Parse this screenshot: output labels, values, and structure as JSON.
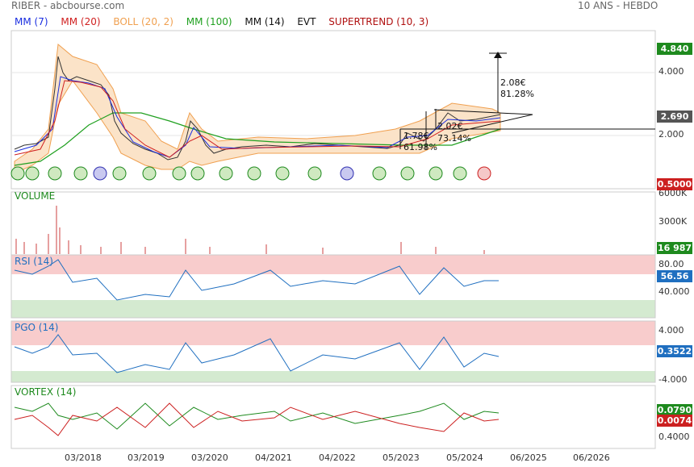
{
  "header": {
    "title": "RIBER - abcbourse.com",
    "period": "10 ANS - HEBDO"
  },
  "legend": [
    {
      "label": "MM (7)",
      "color": "#1a2ee0"
    },
    {
      "label": "MM (20)",
      "color": "#d02020"
    },
    {
      "label": "BOLL (20, 2)",
      "color": "#f0a050"
    },
    {
      "label": "MM (100)",
      "color": "#20a020"
    },
    {
      "label": "MM (14)",
      "color": "#111111"
    },
    {
      "label": "EVT",
      "color": "#111111"
    },
    {
      "label": "SUPERTREND (10, 3)",
      "color": "#b01010"
    }
  ],
  "panels": {
    "price": {
      "y_ticks": [
        "4.000",
        "2.000"
      ],
      "badges": [
        {
          "text": "4.840",
          "color": "#1e8a1e"
        },
        {
          "text": "2.690",
          "color": "#555555"
        },
        {
          "text": "0.5000",
          "color": "#cc2020"
        }
      ],
      "annotations": [
        {
          "text": "2.08€"
        },
        {
          "text": "81.28%"
        },
        {
          "text": "1.78€"
        },
        {
          "text": "61.98%"
        },
        {
          "text": "2.02€"
        },
        {
          "text": "73.14%"
        }
      ]
    },
    "volume": {
      "title": "VOLUME",
      "y_ticks": [
        "6000K",
        "3000K"
      ],
      "badge": {
        "text": "16 987",
        "color": "#1e8a1e"
      }
    },
    "rsi": {
      "title": "RSI (14)",
      "y_ticks": [
        "80.00",
        "40.000"
      ],
      "badge": {
        "text": "56.56",
        "color": "#1f6fc0"
      }
    },
    "pgo": {
      "title": "PGO (14)",
      "y_ticks": [
        "4.000",
        "-4.000"
      ],
      "badge": {
        "text": "0.3522",
        "color": "#1f6fc0"
      }
    },
    "vortex": {
      "title": "VORTEX (14)",
      "y_ticks": [
        "0.4000"
      ],
      "badges": [
        {
          "text": "0.0790",
          "color": "#1e8a1e"
        },
        {
          "text": "0.0074",
          "color": "#cc2020"
        }
      ]
    }
  },
  "x_axis": [
    "03/2018",
    "03/2019",
    "03/2020",
    "04/2021",
    "04/2022",
    "05/2023",
    "05/2024",
    "06/2025",
    "06/2026"
  ],
  "chart_data": {
    "type": "line",
    "title": "RIBER - abcbourse.com",
    "xlabel": "",
    "ylabel": "",
    "x": [
      "2017-03",
      "2017-09",
      "2018-03",
      "2018-09",
      "2019-03",
      "2019-09",
      "2020-03",
      "2020-09",
      "2021-04",
      "2021-10",
      "2022-04",
      "2022-10",
      "2023-05",
      "2023-11",
      "2024-05",
      "2024-11"
    ],
    "series": [
      {
        "name": "RIBER",
        "values": [
          1.6,
          1.9,
          4.2,
          3.4,
          1.9,
          1.6,
          2.3,
          1.55,
          1.7,
          1.7,
          1.75,
          1.8,
          1.75,
          2.2,
          2.5,
          2.69
        ]
      }
    ],
    "ylim": [
      0.5,
      4.84
    ],
    "grid": true,
    "legend_position": "top-left"
  }
}
